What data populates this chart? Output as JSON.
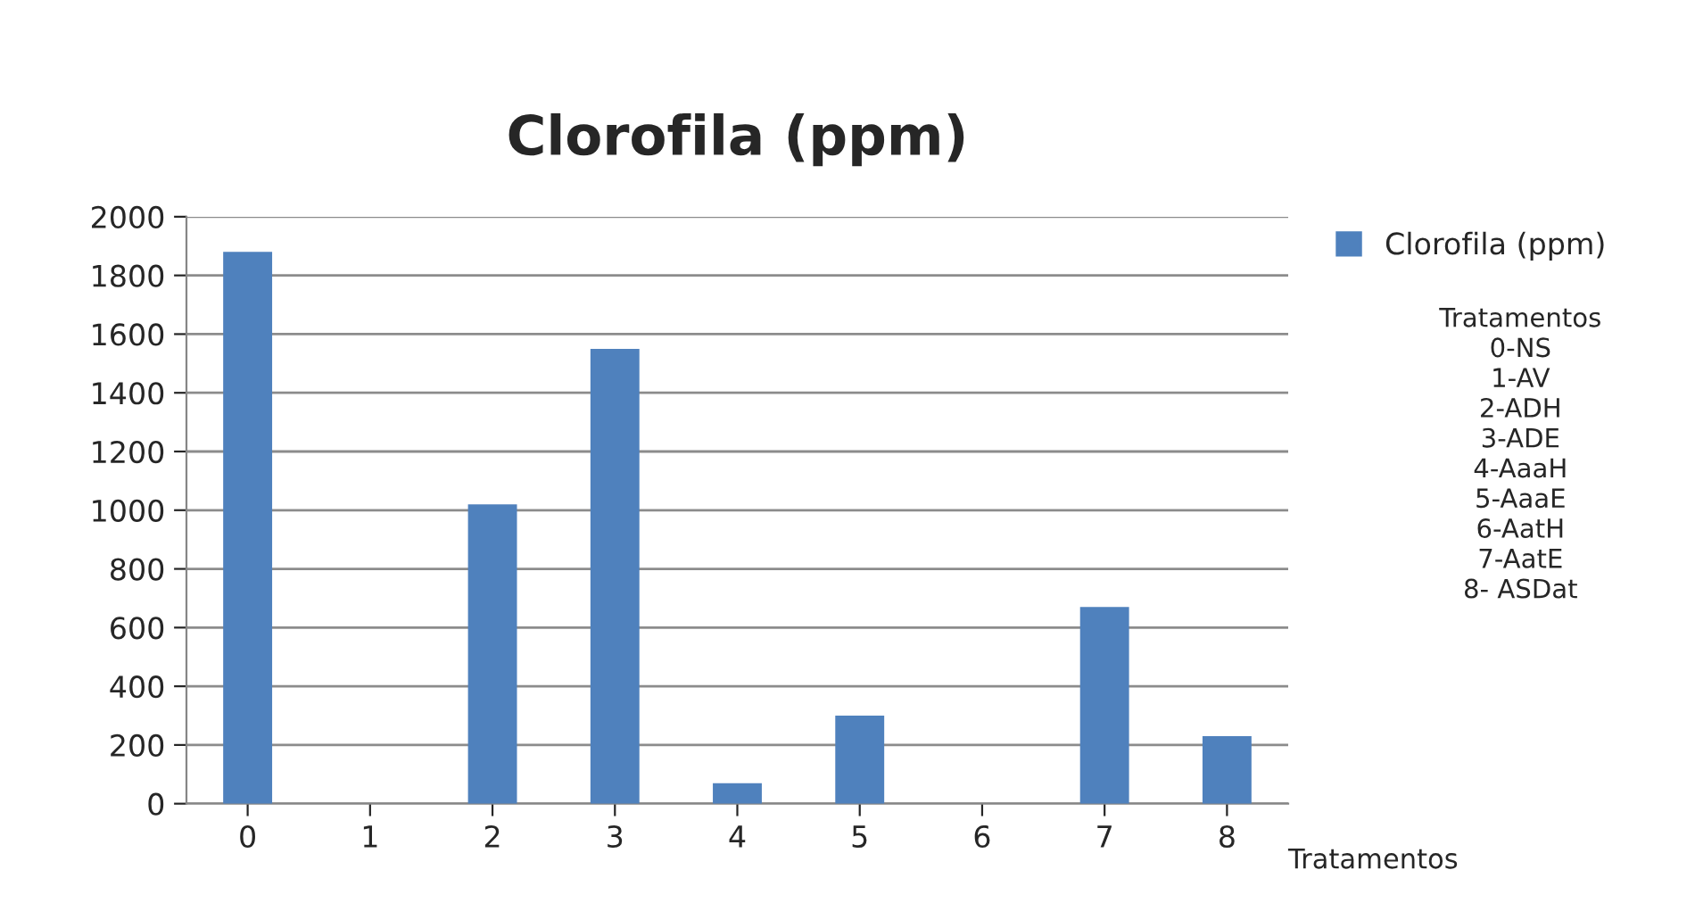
{
  "chart_data": {
    "type": "bar",
    "title": "Clorofila (ppm)",
    "xlabel": "Tratamentos",
    "categories": [
      "0",
      "1",
      "2",
      "3",
      "4",
      "5",
      "6",
      "7",
      "8"
    ],
    "series": [
      {
        "name": "Clorofila (ppm)",
        "color": "#4f81bd",
        "values": [
          1880,
          0,
          1020,
          1550,
          70,
          300,
          0,
          670,
          230
        ]
      }
    ],
    "ylim": [
      0,
      2000
    ],
    "yticks": [
      0,
      200,
      400,
      600,
      800,
      1000,
      1200,
      1400,
      1600,
      1800,
      2000
    ],
    "grid": "y",
    "legend": "right",
    "annotations": [
      "Tratamentos\n0-NS\n1-AV\n2-ADH\n3-ADE\n4-AaaH\n5-AaaE\n6-AatH\n7-AatE\n8- ASDat"
    ]
  }
}
